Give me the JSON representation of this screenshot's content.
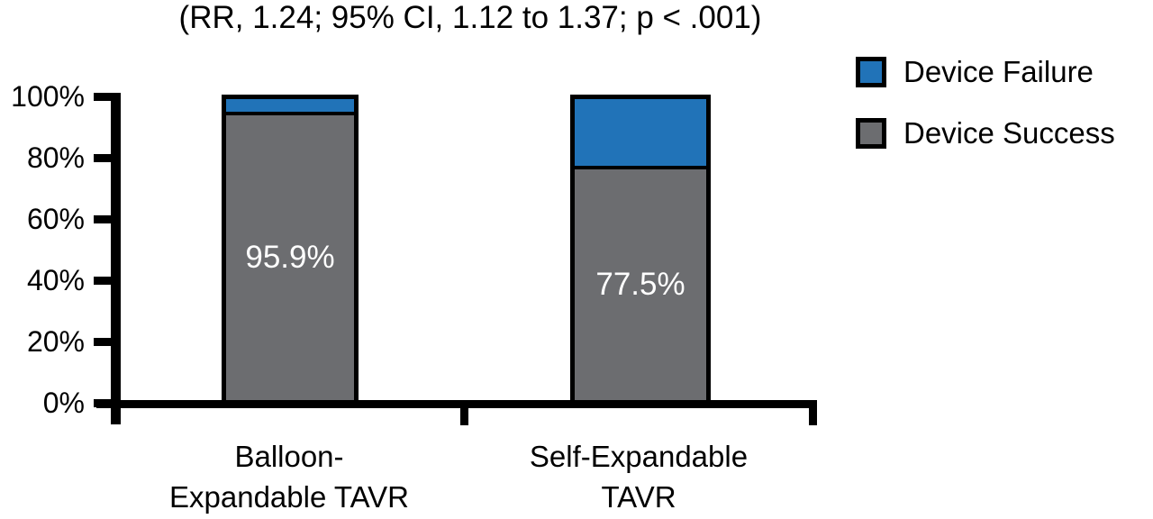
{
  "chart_data": {
    "type": "bar",
    "stacked": true,
    "title": "(RR, 1.24; 95% CI, 1.12 to 1.37; p < .001)",
    "categories": [
      {
        "line1": "Balloon-",
        "line2": "Expandable TAVR"
      },
      {
        "line1": "Self-Expandable",
        "line2": "TAVR"
      }
    ],
    "series": [
      {
        "name": "Device Failure",
        "values": [
          4.1,
          22.5
        ],
        "color": "#2173B8"
      },
      {
        "name": "Device Success",
        "values": [
          95.9,
          77.5
        ],
        "color": "#6C6D70"
      }
    ],
    "bar_labels": [
      "95.9%",
      "77.5%"
    ],
    "y_axis": {
      "range": [
        0,
        100
      ],
      "unit": "%",
      "ticks": [
        {
          "label": "0%",
          "value": 0
        },
        {
          "label": "20%",
          "value": 20
        },
        {
          "label": "40%",
          "value": 40
        },
        {
          "label": "60%",
          "value": 60
        },
        {
          "label": "80%",
          "value": 80
        },
        {
          "label": "100%",
          "value": 100
        }
      ]
    },
    "legend": [
      {
        "label": "Device Failure",
        "color": "#2173B8"
      },
      {
        "label": "Device Success",
        "color": "#6C6D70"
      }
    ],
    "legend_position": "right",
    "grid": false,
    "colors": {
      "axis": "#000000",
      "bar_border": "#000000",
      "value_label_text": "#FFFFFF",
      "background": "#FFFFFF"
    }
  }
}
